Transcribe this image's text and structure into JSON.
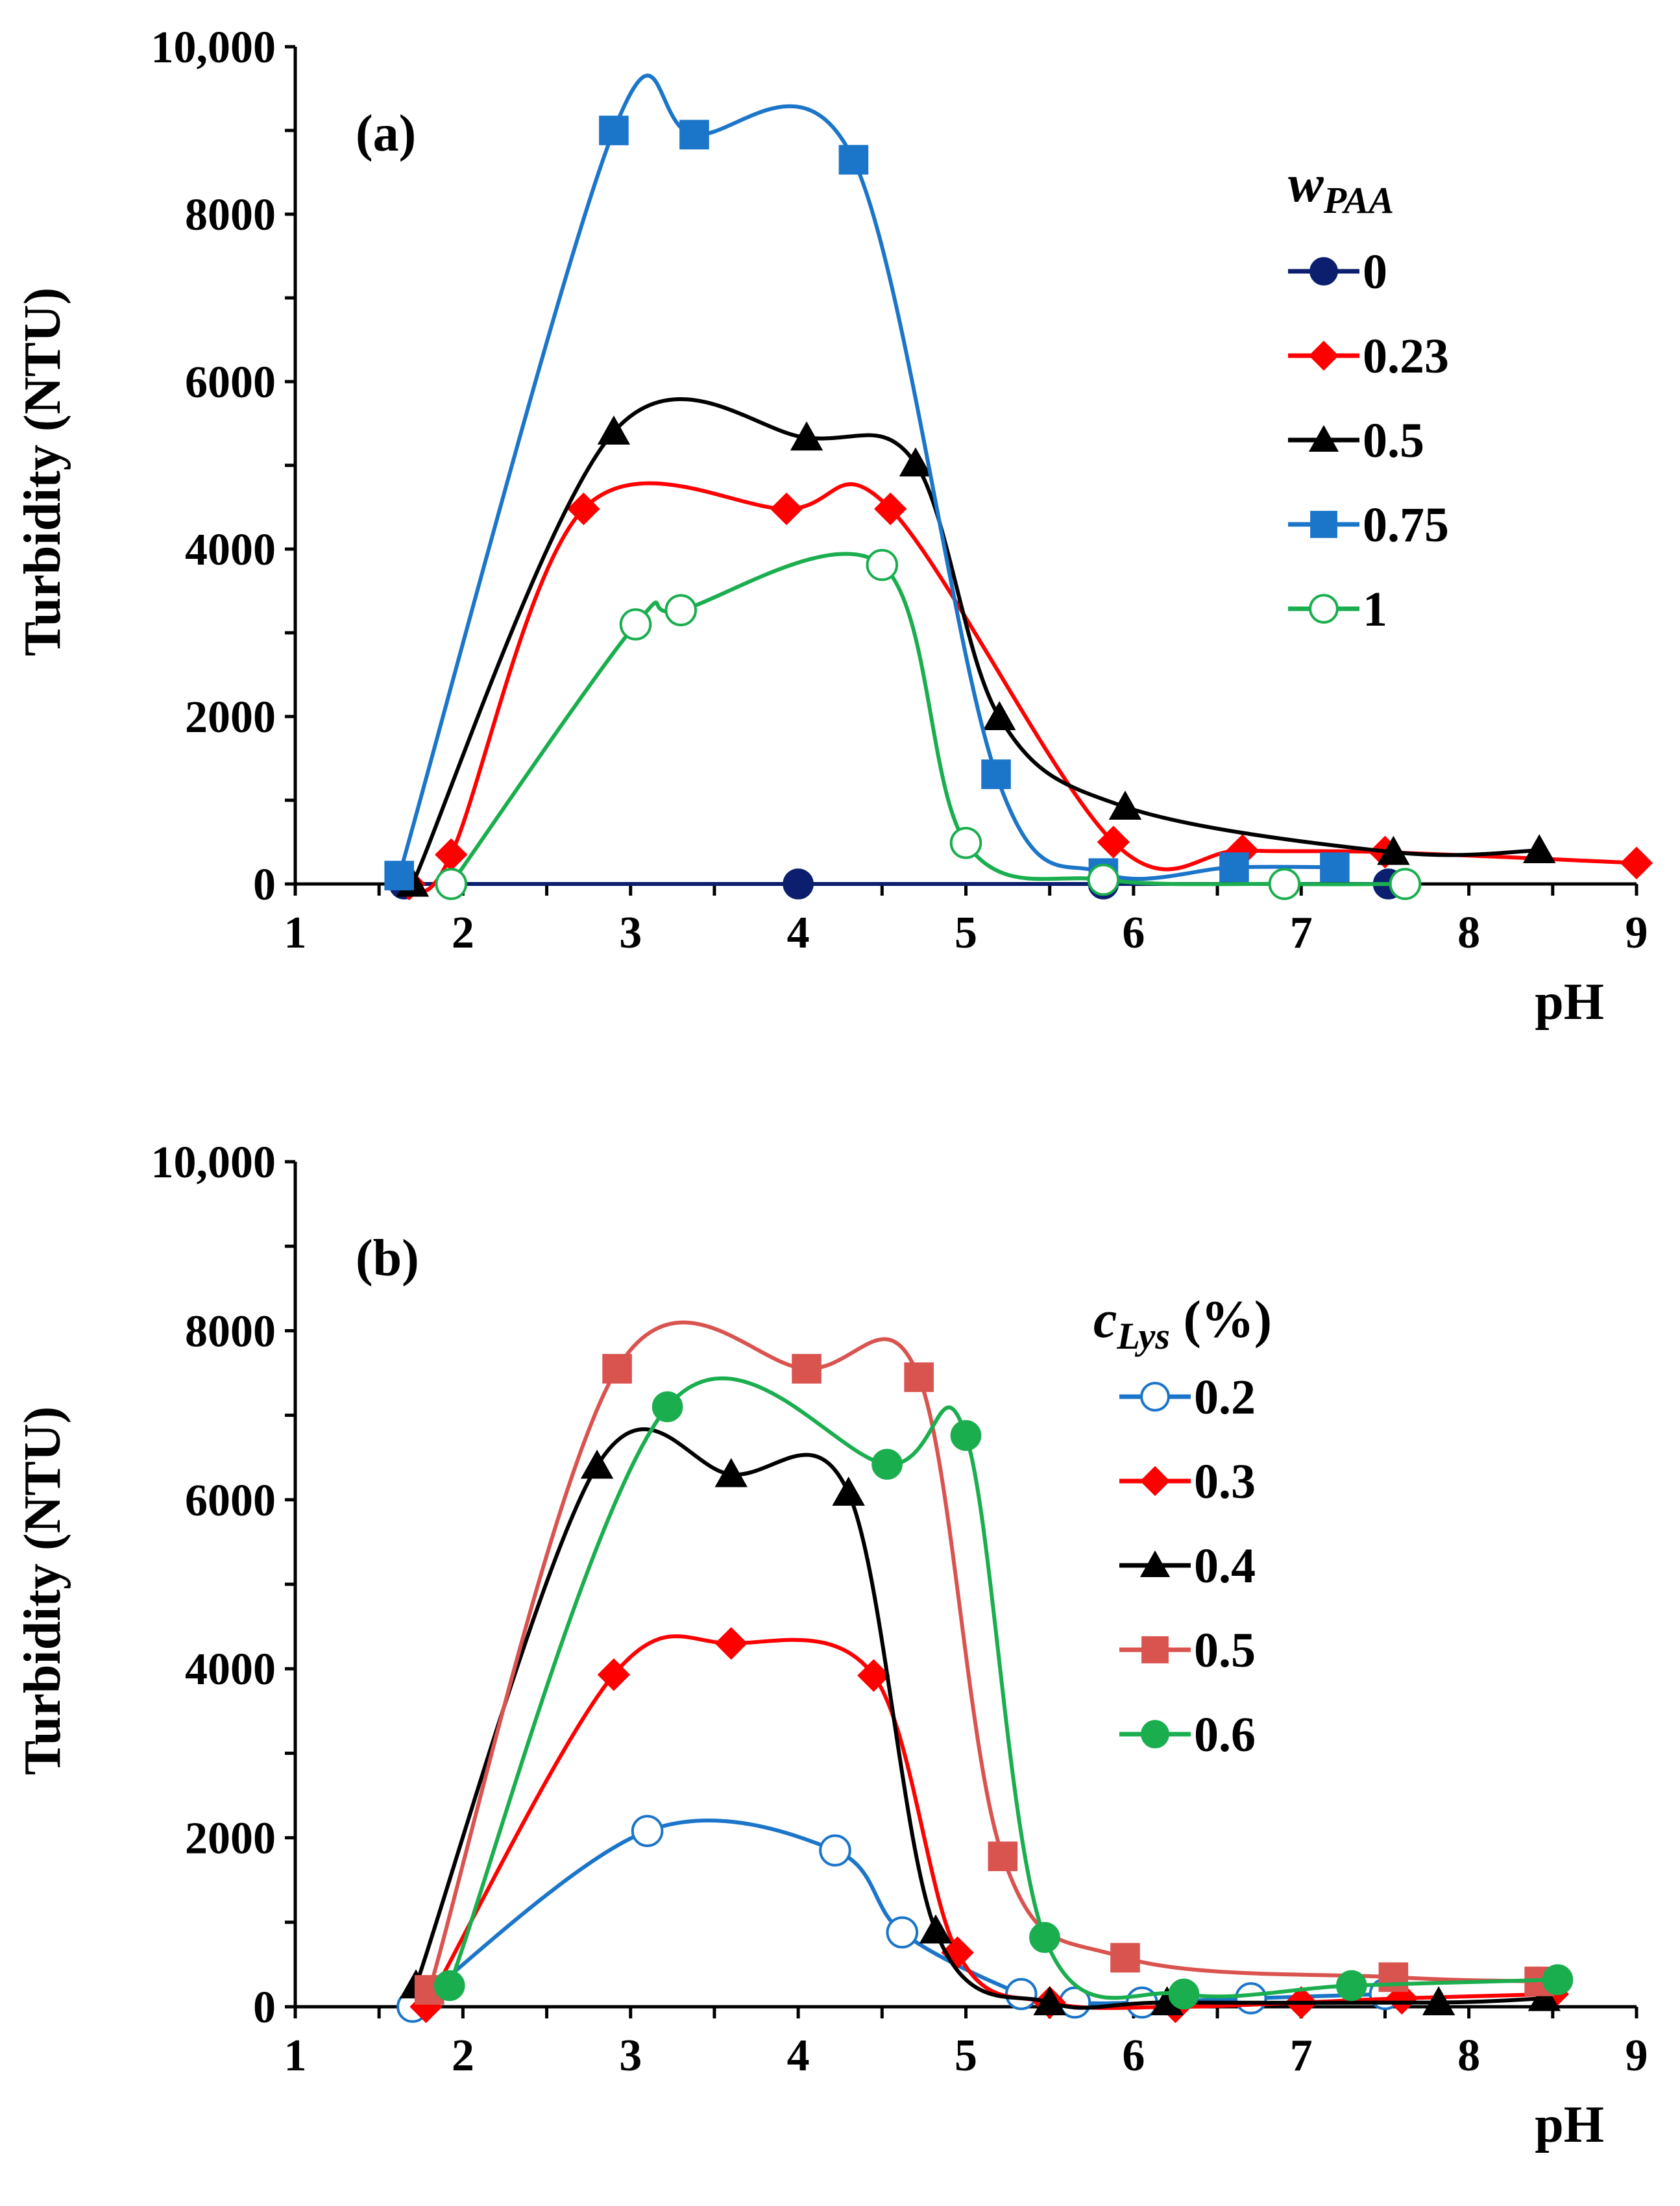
{
  "chart_data": [
    {
      "type": "line",
      "panel_label": "(a)",
      "xlabel": "pH",
      "ylabel": "Turbidity (NTU)",
      "xlim": [
        1,
        9
      ],
      "ylim": [
        0,
        10000
      ],
      "x_ticks": [
        1,
        2,
        3,
        4,
        5,
        6,
        7,
        8,
        9
      ],
      "y_ticks": [
        0,
        2000,
        4000,
        6000,
        8000,
        10000
      ],
      "y_tick_labels": [
        "0",
        "2000",
        "4000",
        "6000",
        "8000",
        "10,000"
      ],
      "legend_title_main": "w",
      "legend_title_sub": "PAA",
      "legend_title_italic": true,
      "legend_position": "right",
      "series": [
        {
          "name": "0",
          "color": "#0b1f6e",
          "marker": "circle-filled",
          "x": [
            1.65,
            1.93,
            4.0,
            5.82,
            7.52
          ],
          "y": [
            0,
            0,
            0,
            0,
            0
          ]
        },
        {
          "name": "0.23",
          "color": "#ff0000",
          "marker": "diamond",
          "x": [
            1.68,
            1.93,
            2.72,
            3.93,
            4.55,
            5.88,
            6.65,
            7.5,
            9.0
          ],
          "y": [
            0,
            350,
            4480,
            4480,
            4480,
            500,
            400,
            380,
            250
          ]
        },
        {
          "name": "0.5",
          "color": "#000000",
          "marker": "triangle",
          "x": [
            1.7,
            2.9,
            4.05,
            4.7,
            5.2,
            5.95,
            7.55,
            8.42
          ],
          "y": [
            0,
            5400,
            5330,
            5020,
            1990,
            920,
            380,
            400
          ]
        },
        {
          "name": "0.75",
          "color": "#1b75c9",
          "marker": "square",
          "x": [
            1.62,
            2.9,
            3.38,
            4.33,
            5.18,
            5.82,
            6.6,
            7.2
          ],
          "y": [
            100,
            9000,
            8950,
            8650,
            1310,
            130,
            200,
            200
          ]
        },
        {
          "name": "1",
          "color": "#1aae4f",
          "marker": "circle-open",
          "x": [
            1.93,
            3.03,
            3.3,
            4.5,
            5.0,
            5.82,
            6.9,
            7.62
          ],
          "y": [
            0,
            3100,
            3270,
            3810,
            490,
            50,
            0,
            0
          ]
        }
      ]
    },
    {
      "type": "line",
      "panel_label": "(b)",
      "xlabel": "pH",
      "ylabel": "Turbidity (NTU)",
      "xlim": [
        1,
        9
      ],
      "ylim": [
        0,
        10000
      ],
      "x_ticks": [
        1,
        2,
        3,
        4,
        5,
        6,
        7,
        8,
        9
      ],
      "y_ticks": [
        0,
        2000,
        4000,
        6000,
        8000,
        10000
      ],
      "y_tick_labels": [
        "0",
        "2000",
        "4000",
        "6000",
        "8000",
        "10,000"
      ],
      "legend_title_main": "c",
      "legend_title_sub": "Lys",
      "legend_title_suffix": " (%)",
      "legend_title_italic": true,
      "legend_position": "right",
      "series": [
        {
          "name": "0.2",
          "color": "#1b75c9",
          "marker": "circle-open",
          "x": [
            1.7,
            3.1,
            4.22,
            4.62,
            5.33,
            5.65,
            6.05,
            6.7,
            7.5
          ],
          "y": [
            0,
            2080,
            1850,
            880,
            150,
            50,
            50,
            100,
            150
          ]
        },
        {
          "name": "0.3",
          "color": "#ff0000",
          "marker": "diamond",
          "x": [
            1.78,
            2.9,
            3.6,
            4.45,
            4.95,
            5.5,
            6.25,
            7.0,
            7.6,
            8.5
          ],
          "y": [
            0,
            3930,
            4300,
            3920,
            640,
            50,
            0,
            50,
            100,
            150
          ]
        },
        {
          "name": "0.4",
          "color": "#000000",
          "marker": "triangle",
          "x": [
            1.72,
            2.8,
            3.6,
            4.3,
            4.82,
            5.5,
            6.2,
            7.82,
            8.45
          ],
          "y": [
            250,
            6400,
            6300,
            6080,
            900,
            50,
            50,
            50,
            100
          ]
        },
        {
          "name": "0.5",
          "color": "#d9534f",
          "marker": "square",
          "x": [
            1.8,
            2.92,
            4.05,
            4.72,
            5.22,
            5.95,
            7.55,
            8.42
          ],
          "y": [
            200,
            7550,
            7550,
            7450,
            1780,
            580,
            350,
            300
          ]
        },
        {
          "name": "0.6",
          "color": "#1aae4f",
          "marker": "circle-filled",
          "x": [
            1.92,
            3.22,
            4.53,
            5.0,
            5.47,
            6.3,
            7.3,
            8.53
          ],
          "y": [
            250,
            7100,
            6420,
            6760,
            820,
            150,
            250,
            320
          ]
        }
      ]
    }
  ]
}
